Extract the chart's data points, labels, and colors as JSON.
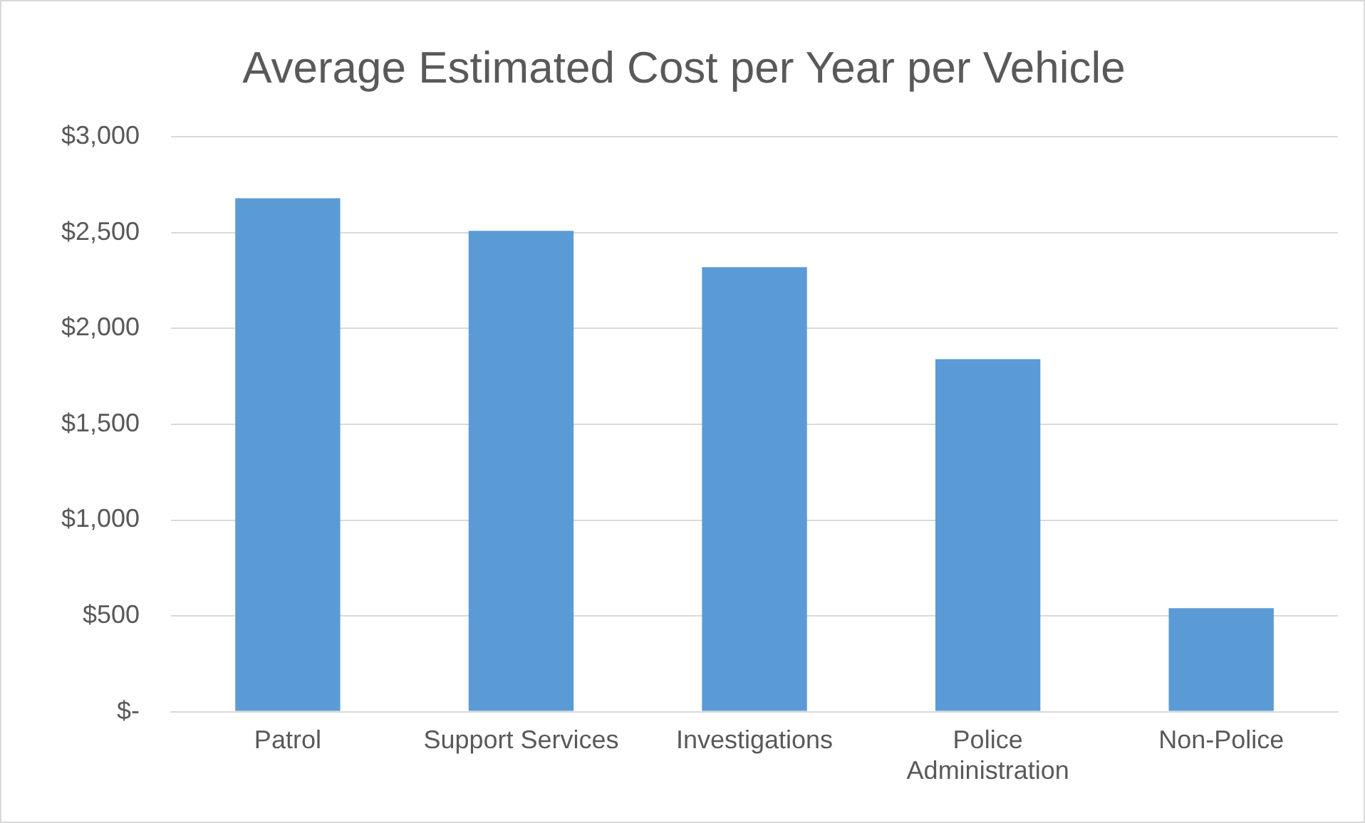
{
  "chart_data": {
    "type": "bar",
    "title": "Average Estimated Cost per Year per Vehicle",
    "categories": [
      "Patrol",
      "Support Services",
      "Investigations",
      "Police Administration",
      "Non-Police"
    ],
    "values": [
      2680,
      2510,
      2320,
      1840,
      540
    ],
    "color": "#5b9bd5",
    "ylim": [
      0,
      3000
    ],
    "yticks": [
      {
        "value": 0,
        "label": "$-"
      },
      {
        "value": 500,
        "label": "$500"
      },
      {
        "value": 1000,
        "label": "$1,000"
      },
      {
        "value": 1500,
        "label": "$1,500"
      },
      {
        "value": 2000,
        "label": "$2,000"
      },
      {
        "value": 2500,
        "label": "$2,500"
      },
      {
        "value": 3000,
        "label": "$3,000"
      }
    ],
    "grid": "y",
    "legend": false
  }
}
